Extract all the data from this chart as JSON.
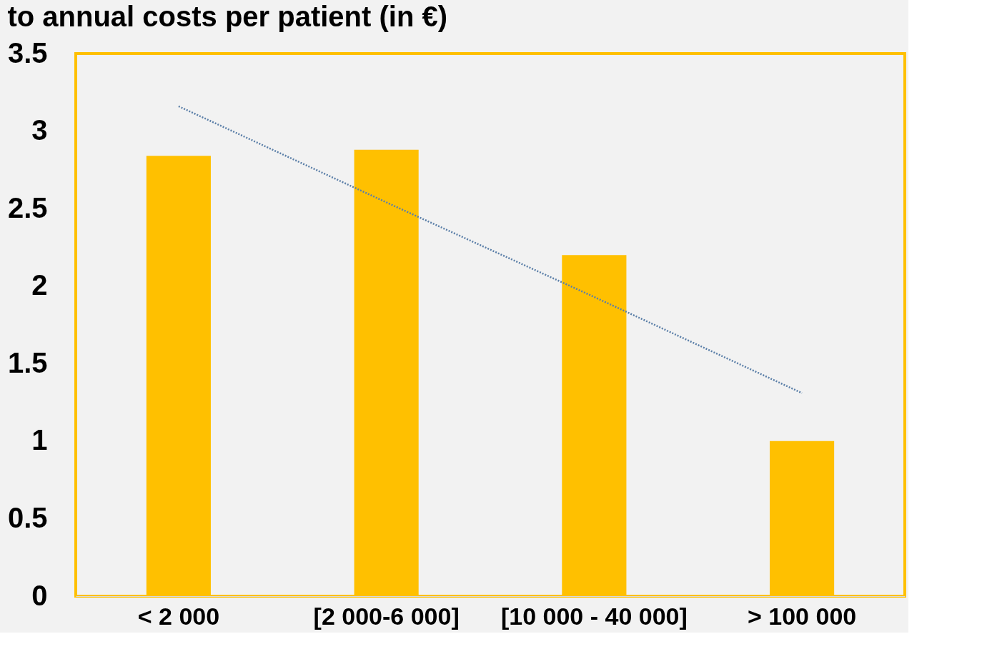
{
  "chart_data": {
    "type": "bar",
    "title": "to annual costs per patient (in €)",
    "categories": [
      "< 2 000",
      "[2 000-6 000]",
      "[10 000 - 40 000]",
      "> 100 000"
    ],
    "series": [
      {
        "color": "#ffc000",
        "values": [
          2.84,
          2.88,
          2.2,
          1.0
        ]
      },
      {
        "type": "line",
        "color": "#5b7fa8",
        "line_style": "dotted",
        "marker": "none",
        "x": [
          "< 2 000",
          "[2 000-6 000]",
          "[10 000 - 40 000]",
          "> 100 000"
        ],
        "values": [
          3.16,
          2.54,
          1.93,
          1.31
        ]
      }
    ],
    "ylim": [
      0,
      3.5
    ],
    "yticks": [
      0,
      0.5,
      1,
      1.5,
      2,
      2.5,
      3,
      3.5
    ],
    "grid": false
  }
}
